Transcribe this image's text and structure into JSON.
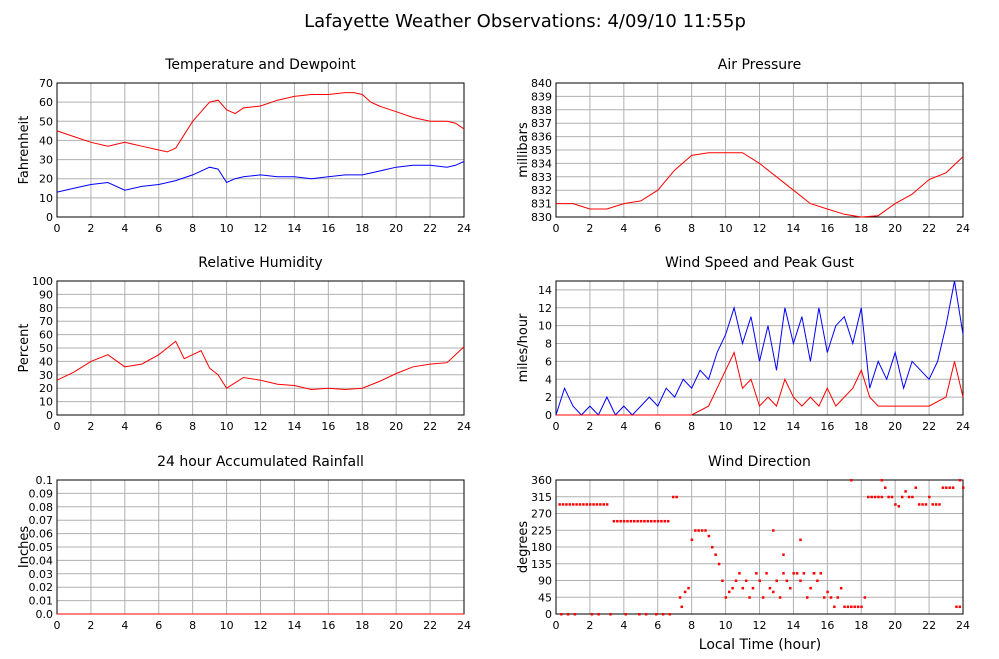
{
  "page": {
    "title": "Lafayette Weather Observations: 4/09/10 11:55p"
  },
  "chart_data": [
    {
      "type": "line",
      "title": "Temperature and Dewpoint",
      "xlabel": "",
      "ylabel": "Fahrenheit",
      "xlim": [
        0,
        24
      ],
      "ylim": [
        0,
        70
      ],
      "x_ticks": [
        0,
        2,
        4,
        6,
        8,
        10,
        12,
        14,
        16,
        18,
        20,
        22,
        24
      ],
      "y_ticks": [
        0,
        10,
        20,
        30,
        40,
        50,
        60,
        70
      ],
      "grid": true,
      "series": [
        {
          "color": "#ff0000",
          "x": [
            0,
            1,
            2,
            3,
            4,
            5,
            6,
            6.5,
            7,
            7.5,
            8,
            8.5,
            9,
            9.5,
            10,
            10.5,
            11,
            12,
            13,
            14,
            15,
            16,
            17,
            17.5,
            18,
            18.5,
            19,
            20,
            21,
            22,
            23,
            23.5,
            24
          ],
          "y": [
            45,
            42,
            39,
            37,
            39,
            37,
            35,
            34,
            36,
            43,
            50,
            55,
            60,
            61,
            56,
            54,
            57,
            58,
            61,
            63,
            64,
            64,
            65,
            65,
            64,
            60,
            58,
            55,
            52,
            50,
            50,
            49,
            46
          ]
        },
        {
          "color": "#0000ff",
          "x": [
            0,
            1,
            2,
            3,
            4,
            5,
            6,
            7,
            8,
            9,
            9.5,
            10,
            10.5,
            11,
            12,
            13,
            14,
            15,
            16,
            17,
            18,
            19,
            20,
            21,
            22,
            23,
            23.5,
            24
          ],
          "y": [
            13,
            15,
            17,
            18,
            14,
            16,
            17,
            19,
            22,
            26,
            25,
            18,
            20,
            21,
            22,
            21,
            21,
            20,
            21,
            22,
            22,
            24,
            26,
            27,
            27,
            26,
            27,
            29
          ]
        }
      ]
    },
    {
      "type": "line",
      "title": "Air Pressure",
      "xlabel": "",
      "ylabel": "millibars",
      "xlim": [
        0,
        24
      ],
      "ylim": [
        830,
        840
      ],
      "x_ticks": [
        0,
        2,
        4,
        6,
        8,
        10,
        12,
        14,
        16,
        18,
        20,
        22,
        24
      ],
      "y_ticks": [
        830,
        831,
        832,
        833,
        834,
        835,
        836,
        837,
        838,
        839,
        840
      ],
      "grid": true,
      "series": [
        {
          "color": "#ff0000",
          "x": [
            0,
            1,
            2,
            3,
            4,
            5,
            6,
            7,
            8,
            9,
            10,
            11,
            12,
            13,
            14,
            15,
            16,
            17,
            18,
            19,
            20,
            21,
            22,
            23,
            24
          ],
          "y": [
            831,
            831,
            830.6,
            830.6,
            831,
            831.2,
            832,
            833.5,
            834.6,
            834.8,
            834.8,
            834.8,
            834,
            833,
            832,
            831,
            830.6,
            830.2,
            830,
            830.1,
            831,
            831.7,
            832.8,
            833.3,
            834.5
          ]
        }
      ]
    },
    {
      "type": "line",
      "title": "Relative Humidity",
      "xlabel": "",
      "ylabel": "Percent",
      "xlim": [
        0,
        24
      ],
      "ylim": [
        0,
        100
      ],
      "x_ticks": [
        0,
        2,
        4,
        6,
        8,
        10,
        12,
        14,
        16,
        18,
        20,
        22,
        24
      ],
      "y_ticks": [
        0,
        10,
        20,
        30,
        40,
        50,
        60,
        70,
        80,
        90,
        100
      ],
      "grid": true,
      "series": [
        {
          "color": "#ff0000",
          "x": [
            0,
            1,
            2,
            3,
            4,
            5,
            6,
            6.5,
            7,
            7.5,
            8,
            8.5,
            9,
            9.5,
            10,
            10.5,
            11,
            12,
            13,
            14,
            15,
            16,
            17,
            18,
            19,
            20,
            21,
            22,
            23,
            23.5,
            24
          ],
          "y": [
            26,
            32,
            40,
            45,
            36,
            38,
            45,
            50,
            55,
            42,
            45,
            48,
            35,
            30,
            20,
            24,
            28,
            26,
            23,
            22,
            19,
            20,
            19,
            20,
            25,
            31,
            36,
            38,
            39,
            45,
            51
          ]
        }
      ]
    },
    {
      "type": "line",
      "title": "Wind Speed and Peak Gust",
      "xlabel": "",
      "ylabel": "miles/hour",
      "xlim": [
        0,
        24
      ],
      "ylim": [
        0,
        15
      ],
      "x_ticks": [
        0,
        2,
        4,
        6,
        8,
        10,
        12,
        14,
        16,
        18,
        20,
        22,
        24
      ],
      "y_ticks": [
        0,
        2,
        4,
        6,
        8,
        10,
        12,
        14
      ],
      "grid": true,
      "series": [
        {
          "color": "#0000ff",
          "x": [
            0,
            0.5,
            1,
            1.5,
            2,
            2.5,
            3,
            3.5,
            4,
            4.5,
            5,
            5.5,
            6,
            6.5,
            7,
            7.5,
            8,
            8.5,
            9,
            9.5,
            10,
            10.5,
            11,
            11.5,
            12,
            12.5,
            13,
            13.5,
            14,
            14.5,
            15,
            15.5,
            16,
            16.5,
            17,
            17.5,
            18,
            18.5,
            19,
            19.5,
            20,
            20.5,
            21,
            21.5,
            22,
            22.5,
            23,
            23.5,
            24
          ],
          "y": [
            0,
            3,
            1,
            0,
            1,
            0,
            2,
            0,
            1,
            0,
            1,
            2,
            1,
            3,
            2,
            4,
            3,
            5,
            4,
            7,
            9,
            12,
            8,
            11,
            6,
            10,
            5,
            12,
            8,
            11,
            6,
            12,
            7,
            10,
            11,
            8,
            12,
            3,
            6,
            4,
            7,
            3,
            6,
            5,
            4,
            6,
            10,
            15,
            9
          ]
        },
        {
          "color": "#ff0000",
          "x": [
            0,
            1,
            2,
            3,
            4,
            5,
            6,
            7,
            8,
            9,
            9.5,
            10,
            10.5,
            11,
            11.5,
            12,
            12.5,
            13,
            13.5,
            14,
            14.5,
            15,
            15.5,
            16,
            16.5,
            17,
            17.5,
            18,
            18.5,
            19,
            20,
            21,
            22,
            23,
            23.5,
            24
          ],
          "y": [
            0,
            0,
            0,
            0,
            0,
            0,
            0,
            0,
            0,
            1,
            3,
            5,
            7,
            3,
            4,
            1,
            2,
            1,
            4,
            2,
            1,
            2,
            1,
            3,
            1,
            2,
            3,
            5,
            2,
            1,
            1,
            1,
            1,
            2,
            6,
            2
          ]
        }
      ]
    },
    {
      "type": "line",
      "title": "24 hour Accumulated Rainfall",
      "xlabel": "",
      "ylabel": "Inches",
      "xlim": [
        0,
        24
      ],
      "ylim": [
        0,
        0.1
      ],
      "x_ticks": [
        0,
        2,
        4,
        6,
        8,
        10,
        12,
        14,
        16,
        18,
        20,
        22,
        24
      ],
      "y_ticks": [
        "0.0",
        "0.01",
        "0.02",
        "0.03",
        "0.04",
        "0.05",
        "0.06",
        "0.07",
        "0.08",
        "0.09",
        "0.1"
      ],
      "grid": true,
      "series": [
        {
          "color": "#ff0000",
          "x": [
            0,
            24
          ],
          "y": [
            0,
            0
          ]
        }
      ]
    },
    {
      "type": "scatter",
      "title": "Wind Direction",
      "xlabel": "Local Time (hour)",
      "ylabel": "degrees",
      "xlim": [
        0,
        24
      ],
      "ylim": [
        0,
        360
      ],
      "x_ticks": [
        0,
        2,
        4,
        6,
        8,
        10,
        12,
        14,
        16,
        18,
        20,
        22,
        24
      ],
      "y_ticks": [
        0,
        45,
        90,
        135,
        180,
        225,
        270,
        315,
        360
      ],
      "grid": true,
      "series": [
        {
          "color": "#ff0000",
          "x": [
            0.2,
            0.4,
            0.6,
            0.8,
            1.0,
            1.2,
            1.4,
            1.6,
            1.8,
            2.0,
            2.2,
            2.4,
            2.6,
            2.8,
            3.0,
            0.3,
            0.7,
            1.1,
            2.1,
            2.5,
            3.2,
            3.4,
            3.6,
            3.8,
            4.0,
            4.2,
            4.4,
            4.6,
            4.8,
            5.0,
            5.2,
            5.4,
            5.6,
            5.8,
            6.0,
            6.2,
            6.4,
            6.6,
            4.1,
            4.9,
            5.3,
            5.9,
            6.3,
            6.7,
            6.9,
            7.1,
            7.3,
            7.4,
            7.6,
            7.8,
            8.0,
            8.2,
            8.4,
            8.6,
            8.8,
            9.0,
            9.2,
            9.4,
            9.6,
            9.8,
            10.0,
            10.2,
            10.4,
            10.6,
            10.8,
            11.0,
            11.2,
            11.4,
            11.6,
            11.8,
            12.0,
            12.2,
            12.4,
            12.6,
            12.8,
            13.0,
            13.2,
            13.4,
            13.6,
            13.8,
            14.0,
            14.2,
            14.4,
            14.6,
            14.8,
            15.0,
            15.2,
            15.4,
            15.6,
            15.8,
            16.0,
            16.2,
            16.4,
            16.6,
            16.8,
            17.0,
            17.2,
            17.4,
            17.6,
            17.8,
            18.0,
            18.2,
            18.4,
            18.6,
            18.8,
            19.0,
            19.2,
            19.4,
            19.6,
            19.8,
            20.0,
            20.2,
            20.4,
            20.6,
            20.8,
            21.0,
            21.2,
            21.4,
            21.6,
            21.8,
            22.0,
            22.2,
            22.4,
            22.6,
            22.8,
            23.0,
            23.2,
            23.4,
            23.6,
            23.8,
            24.0,
            12.8,
            13.4,
            14.4,
            15.2,
            17.4,
            19.2,
            23.8
          ],
          "y": [
            295,
            295,
            295,
            295,
            295,
            295,
            295,
            295,
            295,
            295,
            295,
            295,
            295,
            295,
            295,
            0,
            0,
            0,
            0,
            0,
            0,
            250,
            250,
            250,
            250,
            250,
            250,
            250,
            250,
            250,
            250,
            250,
            250,
            250,
            250,
            250,
            250,
            250,
            0,
            0,
            0,
            0,
            0,
            0,
            315,
            315,
            45,
            20,
            60,
            70,
            200,
            225,
            225,
            225,
            225,
            210,
            180,
            160,
            135,
            90,
            45,
            60,
            70,
            90,
            110,
            70,
            90,
            45,
            70,
            110,
            90,
            45,
            110,
            70,
            60,
            90,
            45,
            110,
            90,
            70,
            110,
            110,
            90,
            110,
            45,
            70,
            110,
            90,
            110,
            45,
            60,
            45,
            20,
            45,
            70,
            20,
            20,
            20,
            20,
            20,
            20,
            45,
            315,
            315,
            315,
            315,
            315,
            340,
            315,
            315,
            295,
            290,
            315,
            330,
            315,
            315,
            340,
            295,
            295,
            295,
            315,
            295,
            295,
            295,
            340,
            340,
            340,
            340,
            20,
            20,
            340,
            225,
            160,
            200,
            110,
            360,
            360,
            360
          ]
        }
      ]
    }
  ]
}
